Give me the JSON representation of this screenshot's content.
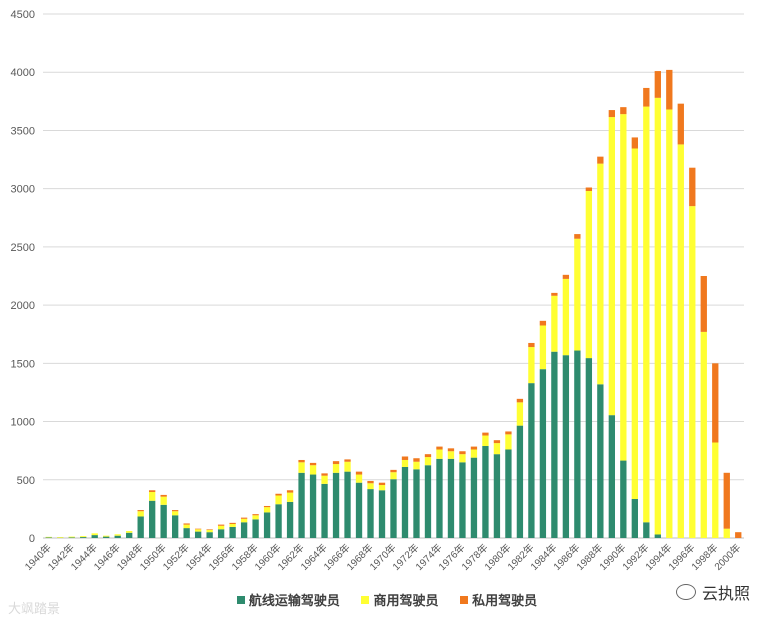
{
  "colors": {
    "airline": "#2e8b6e",
    "commercial": "#ffff33",
    "private": "#f0781e",
    "grid": "#d9d9d9"
  },
  "legend": {
    "airline": "航线运输驾驶员",
    "commercial": "商用驾驶员",
    "private": "私用驾驶员"
  },
  "watermarks": {
    "left": "大飒踏景",
    "right": "云执照"
  },
  "chart_data": {
    "type": "bar",
    "stacked": true,
    "ylim": [
      0,
      4500
    ],
    "yticks": [
      0,
      500,
      1000,
      1500,
      2000,
      2500,
      3000,
      3500,
      4000,
      4500
    ],
    "grid": true,
    "legend_position": "bottom",
    "categories": [
      "1940年",
      "1941年",
      "1942年",
      "1943年",
      "1944年",
      "1945年",
      "1946年",
      "1947年",
      "1948年",
      "1949年",
      "1950年",
      "1951年",
      "1952年",
      "1953年",
      "1954年",
      "1955年",
      "1956年",
      "1957年",
      "1958年",
      "1959年",
      "1960年",
      "1961年",
      "1962年",
      "1963年",
      "1964年",
      "1965年",
      "1966年",
      "1967年",
      "1968年",
      "1969年",
      "1970年",
      "1971年",
      "1972年",
      "1973年",
      "1974年",
      "1975年",
      "1976年",
      "1977年",
      "1978年",
      "1979年",
      "1980年",
      "1981年",
      "1982年",
      "1983年",
      "1984年",
      "1985年",
      "1986年",
      "1987年",
      "1988年",
      "1989年",
      "1990年",
      "1991年",
      "1992年",
      "1993年",
      "1994年",
      "1995年",
      "1996年",
      "1997年",
      "1998年",
      "1999年",
      "2000年"
    ],
    "tick_labels_shown": [
      "1940年",
      "1942年",
      "1944年",
      "1946年",
      "1948年",
      "1950年",
      "1952年",
      "1954年",
      "1956年",
      "1958年",
      "1960年",
      "1962年",
      "1964年",
      "1966年",
      "1968年",
      "1970年",
      "1972年",
      "1974年",
      "1976年",
      "1978年",
      "1980年",
      "1982年",
      "1984年",
      "1986年",
      "1988年",
      "1990年",
      "1992年",
      "1994年",
      "1996年",
      "1998年",
      "2000年"
    ],
    "series": [
      {
        "name": "航线运输驾驶员",
        "values": [
          5,
          2,
          5,
          8,
          25,
          12,
          20,
          45,
          185,
          320,
          285,
          195,
          85,
          55,
          50,
          75,
          95,
          135,
          160,
          220,
          290,
          310,
          560,
          545,
          465,
          560,
          570,
          475,
          420,
          410,
          505,
          610,
          590,
          625,
          680,
          680,
          650,
          690,
          790,
          720,
          760,
          965,
          1330,
          1450,
          1600,
          1570,
          1610,
          1545,
          1320,
          1055,
          665,
          335,
          135,
          30,
          0,
          0,
          0,
          0,
          0,
          0,
          0
        ]
      },
      {
        "name": "商用驾驶员",
        "values": [
          5,
          6,
          7,
          8,
          15,
          8,
          12,
          15,
          45,
          75,
          70,
          35,
          30,
          20,
          20,
          30,
          25,
          30,
          35,
          45,
          75,
          80,
          90,
          80,
          70,
          75,
          85,
          70,
          50,
          45,
          60,
          60,
          65,
          70,
          80,
          65,
          70,
          70,
          90,
          95,
          130,
          200,
          310,
          375,
          480,
          655,
          960,
          1435,
          1895,
          2560,
          2975,
          3010,
          3570,
          3750,
          3680,
          3380,
          2850,
          1770,
          820,
          80,
          0
        ]
      },
      {
        "name": "私用驾驶员",
        "values": [
          0,
          0,
          0,
          0,
          0,
          0,
          0,
          0,
          10,
          15,
          15,
          10,
          10,
          5,
          5,
          10,
          10,
          10,
          10,
          10,
          15,
          20,
          20,
          20,
          20,
          25,
          20,
          25,
          20,
          20,
          20,
          30,
          30,
          25,
          25,
          25,
          25,
          25,
          25,
          25,
          25,
          30,
          35,
          40,
          25,
          35,
          40,
          30,
          60,
          60,
          60,
          95,
          160,
          230,
          340,
          350,
          330,
          480,
          680,
          480,
          50
        ]
      }
    ]
  }
}
